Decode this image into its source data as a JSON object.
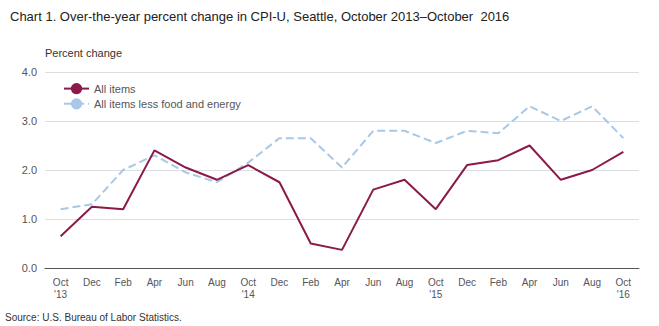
{
  "chart_data": {
    "type": "line",
    "title": "Chart 1. Over-the-year percent change in CPI-U, Seattle, October 2013–October  2016",
    "ylabel": "Percent change",
    "source": "Source: U.S. Bureau of Labor Statistics.",
    "categories": [
      "Oct\n'13",
      "Dec",
      "Feb",
      "Apr",
      "Jun",
      "Aug",
      "Oct\n'14",
      "Dec",
      "Feb",
      "Apr",
      "Jun",
      "Aug",
      "Oct\n'15",
      "Dec",
      "Feb",
      "Apr",
      "Jun",
      "Aug",
      "Oct\n'16"
    ],
    "series": [
      {
        "name": "All items",
        "color": "#8B1A4A",
        "line_style": "solid",
        "values": [
          0.65,
          1.25,
          1.2,
          2.4,
          2.05,
          1.8,
          2.1,
          1.75,
          0.5,
          0.37,
          1.6,
          1.8,
          1.2,
          2.1,
          2.2,
          2.5,
          1.8,
          2.0,
          2.37
        ]
      },
      {
        "name": "All items less food and energy",
        "color": "#A8C8E8",
        "line_style": "dashed",
        "values": [
          1.2,
          1.3,
          2.0,
          2.3,
          1.95,
          1.75,
          2.15,
          2.65,
          2.65,
          2.05,
          2.8,
          2.8,
          2.55,
          2.8,
          2.75,
          3.3,
          3.0,
          3.3,
          2.65
        ]
      }
    ],
    "ylim": [
      0.0,
      4.0
    ],
    "yticks": [
      {
        "value": 0.0,
        "label": "0.0"
      },
      {
        "value": 1.0,
        "label": "1.0"
      },
      {
        "value": 2.0,
        "label": "2.0"
      },
      {
        "value": 3.0,
        "label": "3.0"
      },
      {
        "value": 4.0,
        "label": "4.0"
      }
    ],
    "grid": true,
    "legend": "upper left"
  }
}
